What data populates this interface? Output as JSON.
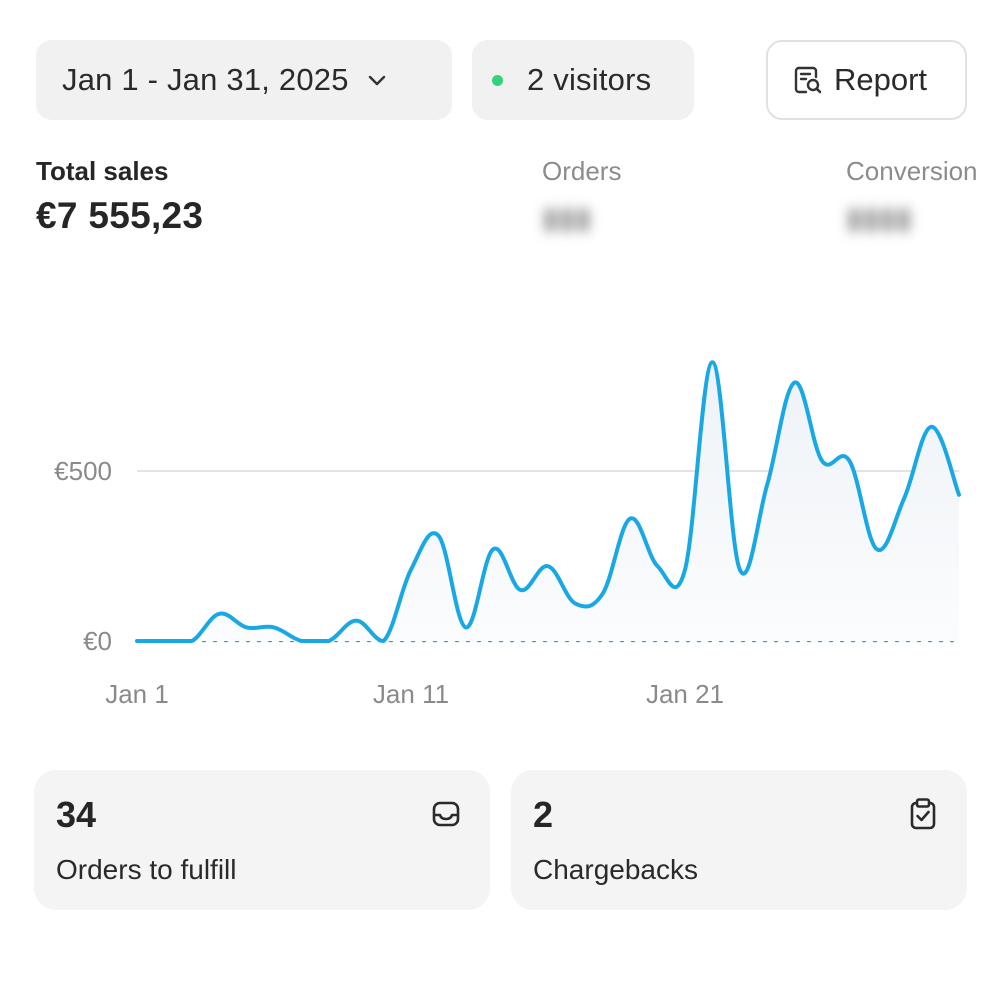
{
  "controls": {
    "date_range": "Jan 1 - Jan 31, 2025",
    "date_range_icon": "chevron-down-icon",
    "visitors_label": "2 visitors",
    "visitors_dot_color": "#34d27b",
    "report_label": "Report",
    "report_icon": "report-search-icon"
  },
  "metrics": {
    "total_sales_label": "Total sales",
    "total_sales_value": "€7 555,23",
    "orders_label": "Orders",
    "conversion_label": "Conversion"
  },
  "chart_data": {
    "type": "line",
    "x": [
      "Jan 1",
      "Jan 2",
      "Jan 3",
      "Jan 4",
      "Jan 5",
      "Jan 6",
      "Jan 7",
      "Jan 8",
      "Jan 9",
      "Jan 10",
      "Jan 11",
      "Jan 12",
      "Jan 13",
      "Jan 14",
      "Jan 15",
      "Jan 16",
      "Jan 17",
      "Jan 18",
      "Jan 19",
      "Jan 20",
      "Jan 21",
      "Jan 22",
      "Jan 23",
      "Jan 24",
      "Jan 25",
      "Jan 26",
      "Jan 27",
      "Jan 28",
      "Jan 29",
      "Jan 30",
      "Jan 31"
    ],
    "series": [
      {
        "color": "#1aa8e4",
        "values": [
          0,
          0,
          0,
          80,
          40,
          40,
          0,
          0,
          60,
          0,
          210,
          310,
          40,
          270,
          150,
          220,
          110,
          140,
          360,
          220,
          210,
          820,
          210,
          460,
          760,
          530,
          530,
          270,
          420,
          630,
          430
        ]
      }
    ],
    "x_tick_labels": [
      "Jan 1",
      "Jan 11",
      "Jan 21"
    ],
    "y_tick_labels": [
      "€0",
      "€500"
    ],
    "y_ticks": [
      0,
      500
    ],
    "ylim": [
      0,
      850
    ],
    "baseline_style": "dotted",
    "grid": "horizontal line at €500",
    "fill": "light gradient under line"
  },
  "cards": [
    {
      "value": "34",
      "label": "Orders to fulfill",
      "icon": "inbox-icon"
    },
    {
      "value": "2",
      "label": "Chargebacks",
      "icon": "clipboard-check-icon"
    }
  ]
}
